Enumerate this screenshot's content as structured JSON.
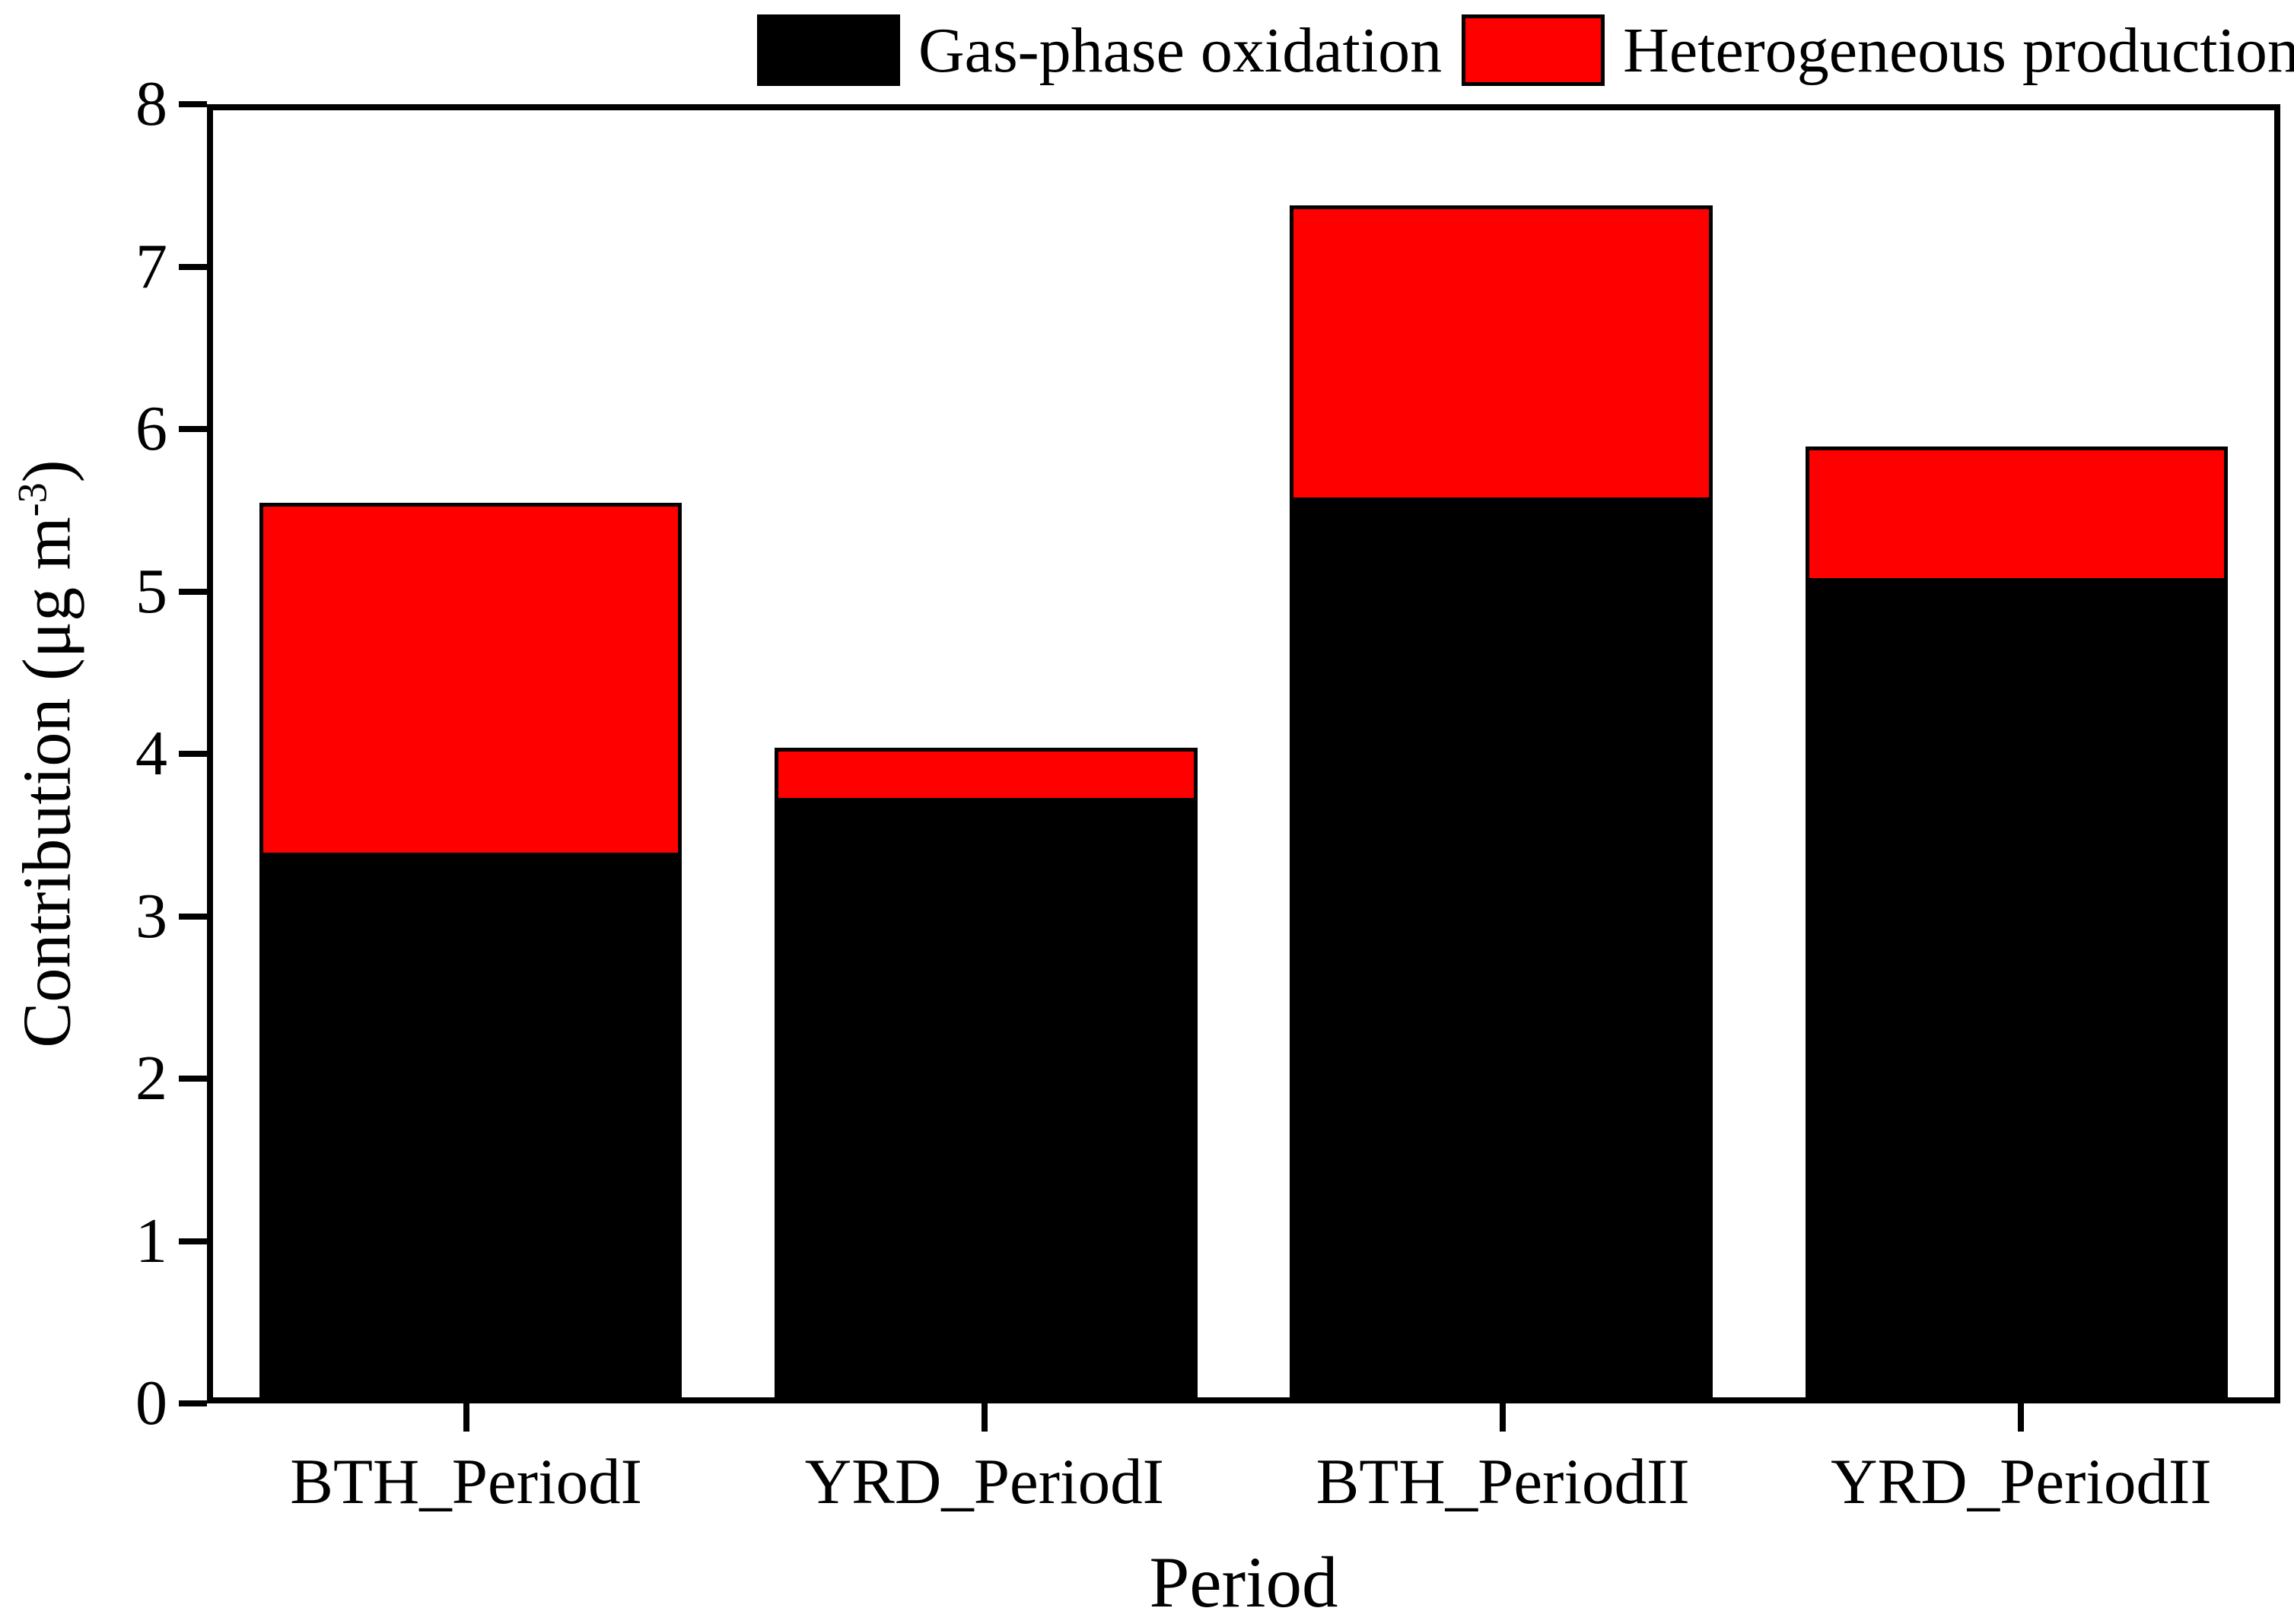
{
  "figure": {
    "background": "#ffffff",
    "axis_color": "#000000"
  },
  "legend": {
    "position": "top",
    "items": [
      {
        "label": "Gas-phase oxidation",
        "swatch_color": "#000000"
      },
      {
        "label": "Heterogeneous production",
        "swatch_color": "#ff0000"
      }
    ]
  },
  "chart_data": {
    "type": "bar",
    "stacked": true,
    "grid": false,
    "categories": [
      "BTH_PeriodI",
      "YRD_PeriodI",
      "BTH_PeriodII",
      "YRD_PeriodII"
    ],
    "series": [
      {
        "name": "Gas-phase oxidation",
        "color": "#000000",
        "values": [
          3.36,
          3.7,
          5.57,
          5.07
        ]
      },
      {
        "name": "Heterogeneous production",
        "color": "#ff0000",
        "values": [
          2.2,
          0.34,
          1.84,
          0.84
        ]
      }
    ],
    "totals": [
      5.56,
      4.04,
      7.41,
      5.91
    ],
    "xlabel": "Period",
    "ylabel": "Contribution (μg m⁻³)",
    "ylabel_parts": {
      "prefix": "Contribution (μg m",
      "sup": "-3",
      "suffix": ")"
    },
    "ylim": [
      0,
      8
    ],
    "yticks": [
      0,
      1,
      2,
      3,
      4,
      5,
      6,
      7,
      8
    ],
    "bar_width_fraction": 0.82
  }
}
